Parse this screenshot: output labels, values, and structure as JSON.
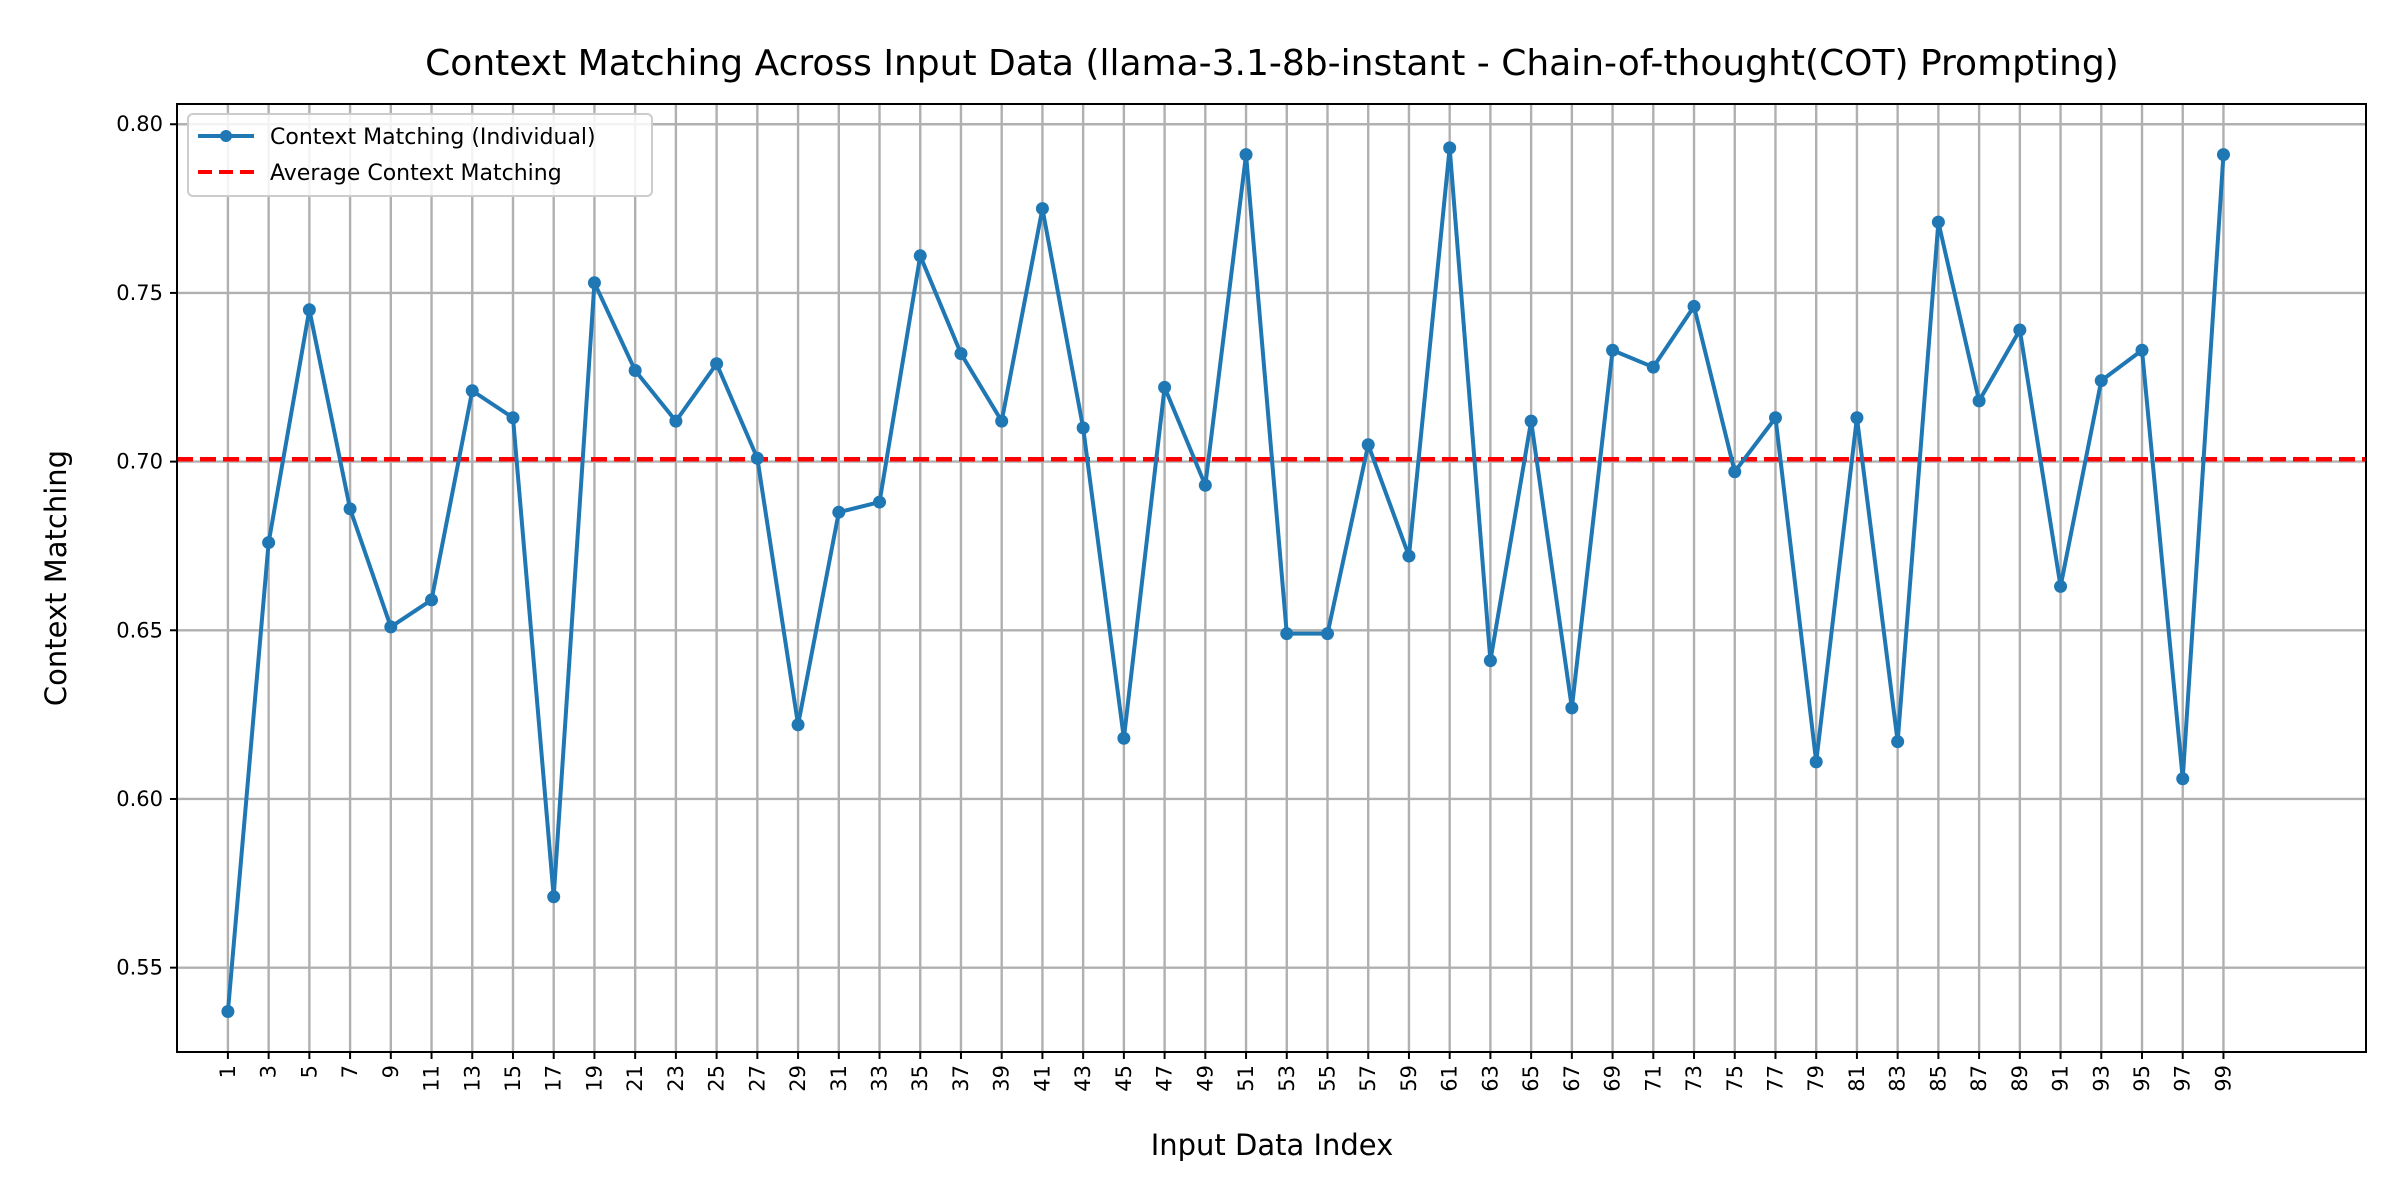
{
  "chart_data": {
    "type": "line",
    "title": "Context Matching Across Input Data (llama-3.1-8b-instant - Chain-of-thought(COT) Prompting)",
    "xlabel": "Input Data Index",
    "ylabel": "Context Matching",
    "xlim": [
      -1.5,
      106
    ],
    "ylim": [
      0.525,
      0.806
    ],
    "grid": true,
    "legend_position": "upper-left",
    "x_ticks": [
      1,
      3,
      5,
      7,
      9,
      11,
      13,
      15,
      17,
      19,
      21,
      23,
      25,
      27,
      29,
      31,
      33,
      35,
      37,
      39,
      41,
      43,
      45,
      47,
      49,
      51,
      53,
      55,
      57,
      59,
      61,
      63,
      65,
      67,
      69,
      71,
      73,
      75,
      77,
      79,
      81,
      83,
      85,
      87,
      89,
      91,
      93,
      95,
      97,
      99
    ],
    "y_ticks": [
      0.55,
      0.6,
      0.65,
      0.7,
      0.75,
      0.8
    ],
    "y_tick_labels": [
      "0.55",
      "0.60",
      "0.65",
      "0.70",
      "0.75",
      "0.80"
    ],
    "x": [
      1,
      3,
      5,
      7,
      9,
      11,
      13,
      15,
      17,
      19,
      21,
      23,
      25,
      27,
      29,
      31,
      33,
      35,
      37,
      39,
      41,
      43,
      45,
      47,
      49,
      51,
      53,
      55,
      57,
      59,
      61,
      63,
      65,
      67,
      69,
      71,
      73,
      75,
      77,
      79,
      81,
      83,
      85,
      87,
      89,
      91,
      93,
      95,
      97,
      99
    ],
    "series": [
      {
        "name": "Context Matching (Individual)",
        "color": "#1f77b4",
        "style": "solid-with-markers",
        "values": [
          0.537,
          0.676,
          0.745,
          0.686,
          0.651,
          0.659,
          0.721,
          0.713,
          0.571,
          0.753,
          0.727,
          0.712,
          0.729,
          0.701,
          0.622,
          0.685,
          0.688,
          0.761,
          0.732,
          0.712,
          0.775,
          0.71,
          0.618,
          0.722,
          0.693,
          0.791,
          0.649,
          0.649,
          0.705,
          0.672,
          0.793,
          0.641,
          0.712,
          0.627,
          0.733,
          0.728,
          0.746,
          0.697,
          0.713,
          0.611,
          0.713,
          0.617,
          0.771,
          0.718,
          0.739,
          0.663,
          0.724,
          0.733,
          0.606,
          0.791
        ]
      }
    ],
    "reference_lines": [
      {
        "name": "Average Context Matching",
        "color": "#ff0000",
        "style": "dashed",
        "y": 0.7007
      }
    ]
  }
}
